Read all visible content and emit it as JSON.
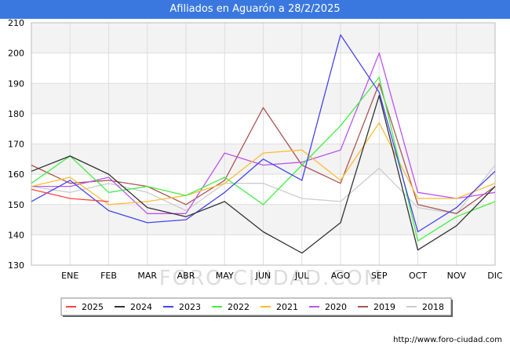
{
  "header": {
    "title": "Afiliados en Aguarón a 28/2/2025"
  },
  "footer": {
    "url": "http://www.foro-ciudad.com"
  },
  "watermark": "FORO-CIUDAD.COM",
  "chart_data": {
    "type": "line",
    "title": "Afiliados en Aguarón a 28/2/2025",
    "xlabel": "",
    "ylabel": "",
    "categories": [
      "",
      "ENE",
      "FEB",
      "MAR",
      "ABR",
      "MAY",
      "JUN",
      "JUL",
      "AGO",
      "SEP",
      "OCT",
      "NOV",
      "DIC"
    ],
    "ylim": [
      130,
      210
    ],
    "yticks": [
      130,
      140,
      150,
      160,
      170,
      180,
      190,
      200,
      210
    ],
    "grid": true,
    "legend_position": "bottom",
    "series": [
      {
        "name": "2025",
        "color": "#ff4444",
        "values": [
          155,
          152,
          151,
          null,
          null,
          null,
          null,
          null,
          null,
          null,
          null,
          null,
          null
        ]
      },
      {
        "name": "2024",
        "color": "#333333",
        "values": [
          161,
          166,
          160,
          149,
          146,
          151,
          141,
          134,
          144,
          186,
          135,
          143,
          156
        ]
      },
      {
        "name": "2023",
        "color": "#4444ee",
        "values": [
          151,
          158,
          148,
          144,
          145,
          154,
          165,
          158,
          206,
          187,
          141,
          149,
          161
        ]
      },
      {
        "name": "2022",
        "color": "#44ee44",
        "values": [
          157,
          166,
          154,
          156,
          153,
          159,
          150,
          163,
          176,
          192,
          138,
          146,
          151
        ]
      },
      {
        "name": "2021",
        "color": "#ffbb33",
        "values": [
          156,
          159,
          150,
          151,
          153,
          157,
          167,
          168,
          158,
          177,
          152,
          152,
          157
        ]
      },
      {
        "name": "2020",
        "color": "#bb55ee",
        "values": [
          156,
          156,
          159,
          147,
          147,
          167,
          163,
          164,
          168,
          200,
          154,
          152,
          154
        ]
      },
      {
        "name": "2019",
        "color": "#aa5555",
        "values": [
          163,
          157,
          158,
          156,
          150,
          158,
          182,
          163,
          157,
          190,
          150,
          147,
          156
        ]
      },
      {
        "name": "2018",
        "color": "#cccccc",
        "values": [
          156,
          154,
          157,
          154,
          148,
          157,
          157,
          152,
          151,
          162,
          149,
          147,
          163
        ]
      }
    ]
  }
}
